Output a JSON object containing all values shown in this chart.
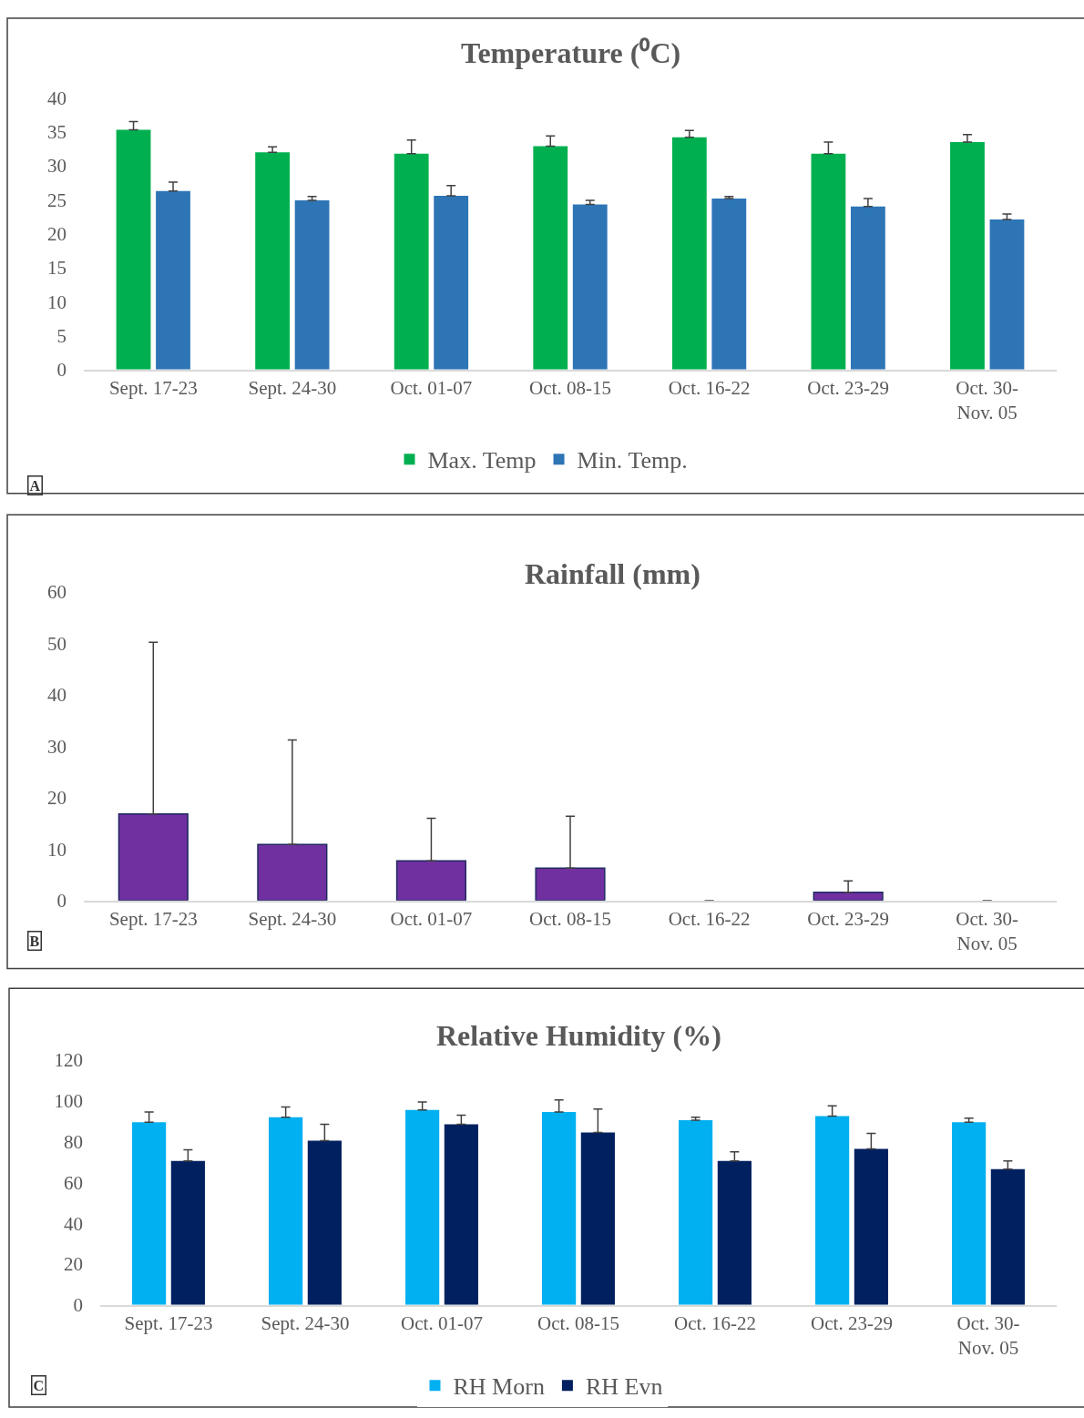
{
  "chart_data": [
    {
      "type": "bar",
      "title": "Temperature (⁰C)",
      "categories": [
        "Sept. 17-23",
        "Sept. 24-30",
        "Oct. 01-07",
        "Oct. 08-15",
        "Oct. 16-22",
        "Oct. 23-29",
        "Oct. 30-\nNov. 05"
      ],
      "series": [
        {
          "name": "Max. Temp",
          "color": "#00b050",
          "values": [
            35.3,
            32.0,
            31.8,
            32.9,
            34.2,
            31.8,
            33.5
          ],
          "errors": [
            [
              35.3,
              36.5
            ],
            [
              32.0,
              32.8
            ],
            [
              31.8,
              33.8
            ],
            [
              32.9,
              34.4
            ],
            [
              34.2,
              35.2
            ],
            [
              31.8,
              33.5
            ],
            [
              33.5,
              34.6
            ]
          ]
        },
        {
          "name": "Min. Temp.",
          "color": "#2e75b6",
          "values": [
            26.3,
            24.9,
            25.6,
            24.3,
            25.2,
            24.0,
            22.1
          ],
          "errors": [
            [
              26.3,
              27.6
            ],
            [
              24.9,
              25.5
            ],
            [
              25.6,
              27.1
            ],
            [
              24.3,
              24.9
            ],
            [
              25.2,
              25.5
            ],
            [
              24.0,
              25.2
            ],
            [
              22.1,
              22.9
            ]
          ]
        }
      ],
      "ylim": [
        0,
        40
      ],
      "yticks": [
        0,
        5,
        10,
        15,
        20,
        25,
        30,
        35,
        40
      ],
      "grid": false,
      "legend": "bottom",
      "annotations": [
        "A"
      ]
    },
    {
      "type": "bar",
      "title": "Rainfall (mm)",
      "categories": [
        "Sept. 17-23",
        "Sept. 24-30",
        "Oct. 01-07",
        "Oct. 08-15",
        "Oct. 16-22",
        "Oct. 23-29",
        "Oct. 30-\nNov. 05"
      ],
      "series": [
        {
          "color": "#7030a0",
          "values": [
            16.8,
            10.9,
            7.7,
            6.3,
            0,
            1.6,
            0
          ],
          "errors": [
            [
              16.8,
              50.2
            ],
            [
              10.9,
              31.2
            ],
            [
              7.7,
              16.0
            ],
            [
              6.3,
              16.4
            ],
            null,
            [
              1.6,
              3.8
            ],
            null
          ]
        }
      ],
      "ylim": [
        0,
        60
      ],
      "yticks": [
        0,
        10,
        20,
        30,
        40,
        50,
        60
      ],
      "grid": false,
      "legend": false,
      "annotations": [
        "B"
      ]
    },
    {
      "type": "bar",
      "title": "Relative Humidity (%)",
      "categories": [
        "Sept. 17-23",
        "Sept. 24-30",
        "Oct. 01-07",
        "Oct. 08-15",
        "Oct. 16-22",
        "Oct. 23-29",
        "Oct. 30-\nNov. 05"
      ],
      "series": [
        {
          "name": "RH Morn",
          "color": "#00b0f0",
          "values": [
            89.5,
            92,
            95.5,
            94.5,
            90.5,
            92.5,
            89.5
          ],
          "errors": [
            [
              89.5,
              94.5
            ],
            [
              92,
              97
            ],
            [
              95.5,
              99.5
            ],
            [
              94.5,
              100.5
            ],
            [
              90.5,
              92
            ],
            [
              92.5,
              97.5
            ],
            [
              89.5,
              91.5
            ]
          ]
        },
        {
          "name": "RH Evn",
          "color": "#002060",
          "values": [
            70.5,
            80.5,
            88.5,
            84.5,
            70.5,
            76.5,
            66.5
          ],
          "errors": [
            [
              70.5,
              76
            ],
            [
              80.5,
              88.5
            ],
            [
              88.5,
              93
            ],
            [
              84.5,
              96
            ],
            [
              70.5,
              75
            ],
            [
              76.5,
              84
            ],
            [
              66.5,
              70.5
            ]
          ]
        }
      ],
      "ylim": [
        0,
        120
      ],
      "yticks": [
        0,
        20,
        40,
        60,
        80,
        100,
        120
      ],
      "grid": false,
      "legend": "bottom",
      "annotations": [
        "C"
      ]
    }
  ]
}
